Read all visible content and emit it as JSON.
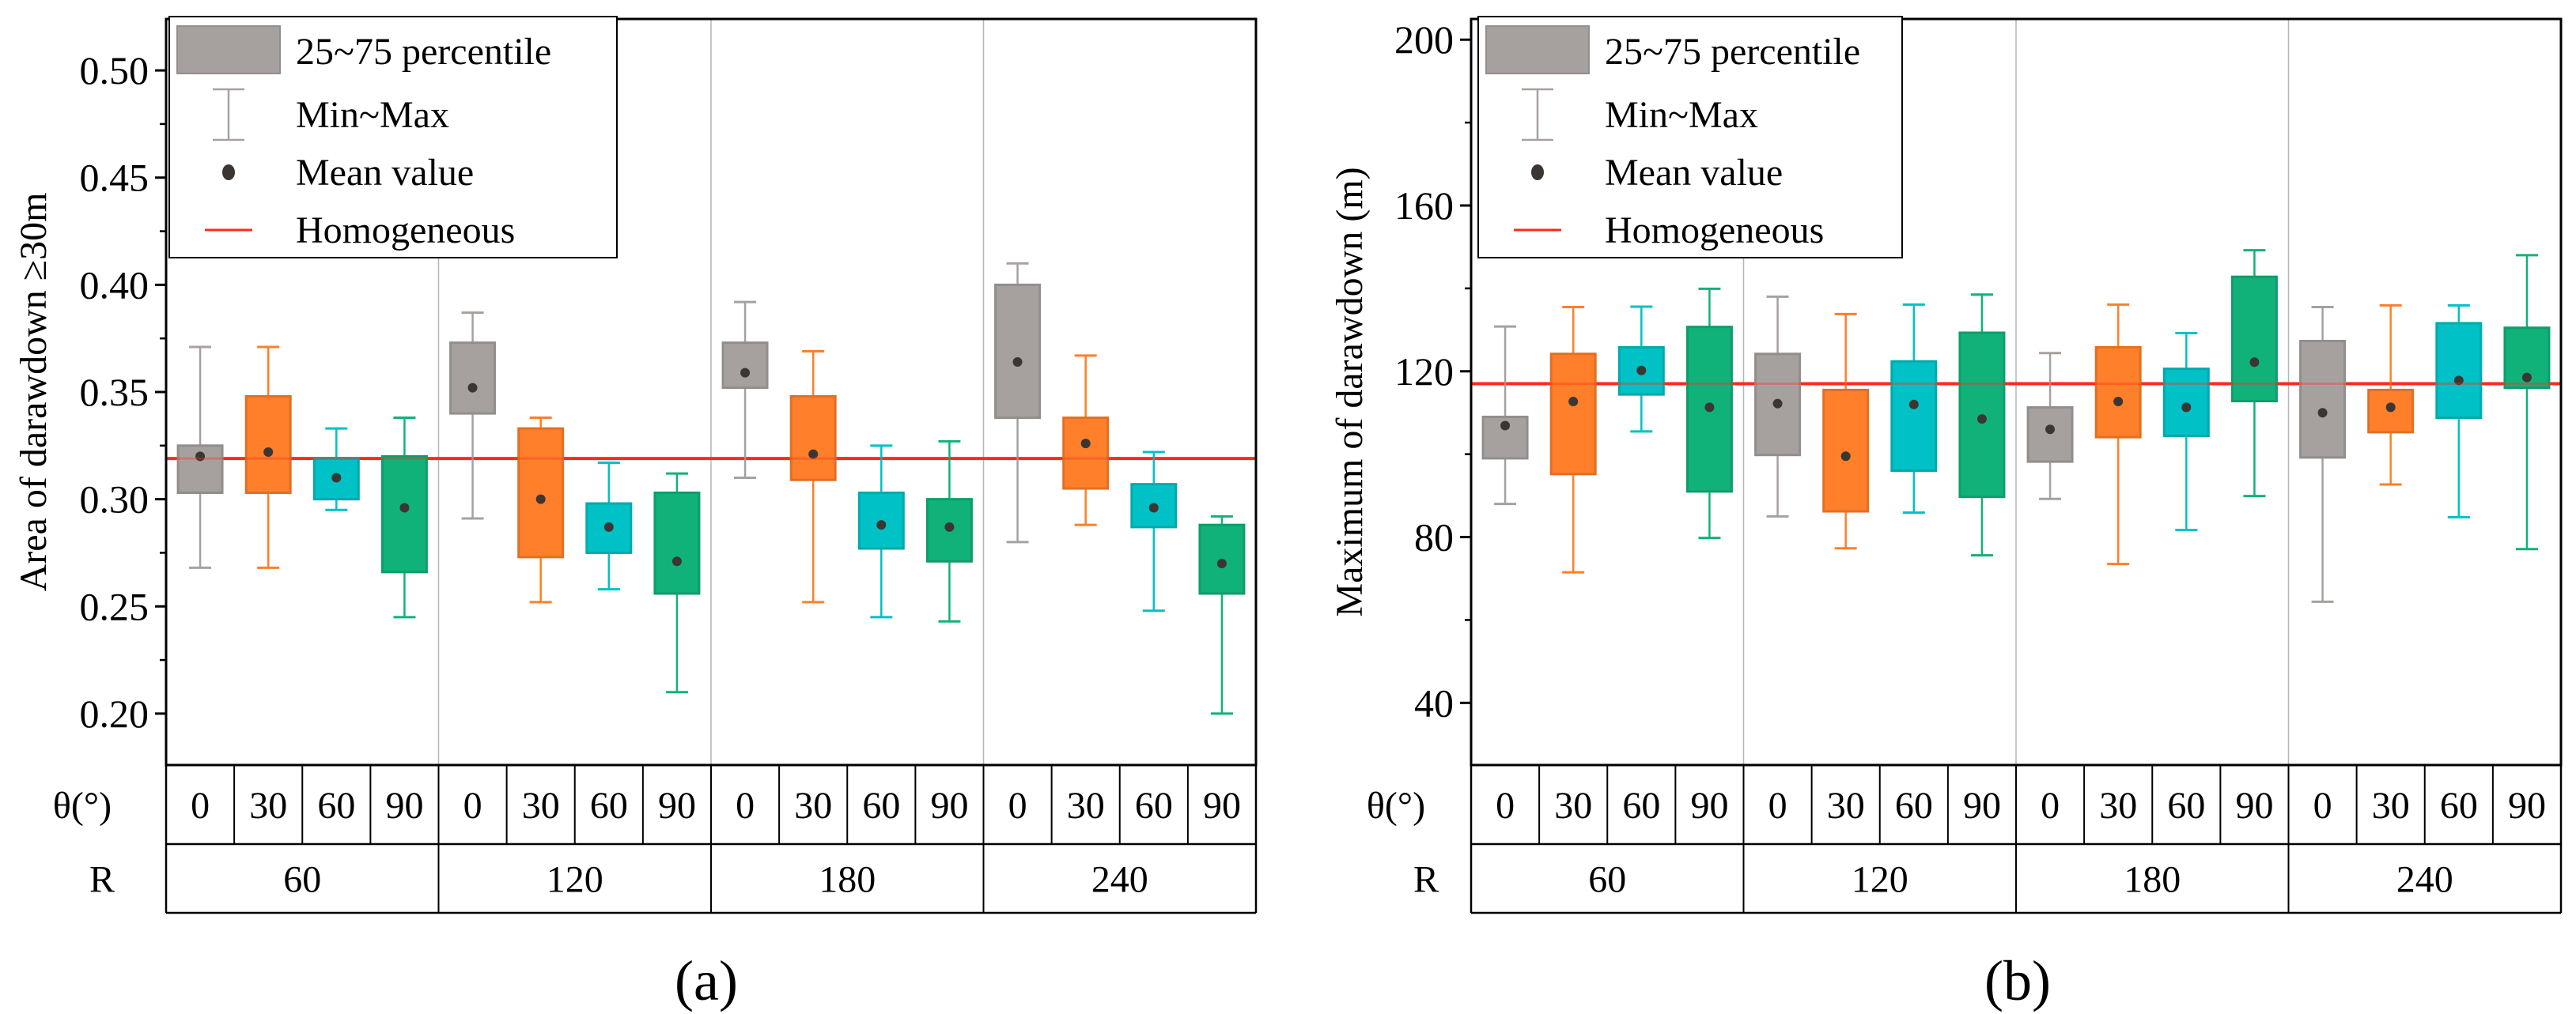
{
  "legend": {
    "box": "25~75 percentile",
    "whisker": "Min~Max",
    "mean": "Mean value",
    "homogeneous": "Homogeneous"
  },
  "colors": {
    "theta_0": "#a6a19f",
    "theta_30": "#ff7f2a",
    "theta_60": "#00c1c5",
    "theta_90": "#10b27a",
    "homogeneous": "#ff2a1a",
    "mean": "#3b3632"
  },
  "chart_data": [
    {
      "type": "box",
      "panel_label": "(a)",
      "ylabel": "Area of darawdown ≥30m",
      "ylim": [
        0.176,
        0.524
      ],
      "yticks": [
        0.2,
        0.25,
        0.3,
        0.35,
        0.4,
        0.45,
        0.5
      ],
      "ytick_labels": [
        "0.20",
        "0.25",
        "0.30",
        "0.35",
        "0.40",
        "0.45",
        "0.50"
      ],
      "yminor_step": 0.025,
      "theta_row_label": "θ(°)",
      "r_row_label": "R",
      "theta_labels": [
        "0",
        "30",
        "60",
        "90"
      ],
      "r_labels": [
        "60",
        "120",
        "180",
        "240"
      ],
      "homogeneous": 0.319,
      "legend_position": "top-left",
      "stats_order": [
        "min",
        "q1",
        "mean",
        "q3",
        "max"
      ],
      "groups": [
        [
          [
            0.268,
            0.303,
            0.32,
            0.325,
            0.371
          ],
          [
            0.268,
            0.303,
            0.322,
            0.348,
            0.371
          ],
          [
            0.295,
            0.3,
            0.31,
            0.319,
            0.333
          ],
          [
            0.245,
            0.266,
            0.296,
            0.32,
            0.338
          ]
        ],
        [
          [
            0.291,
            0.34,
            0.352,
            0.373,
            0.387
          ],
          [
            0.252,
            0.273,
            0.3,
            0.333,
            0.338
          ],
          [
            0.258,
            0.275,
            0.287,
            0.298,
            0.317
          ],
          [
            0.21,
            0.256,
            0.271,
            0.303,
            0.312
          ]
        ],
        [
          [
            0.31,
            0.352,
            0.359,
            0.373,
            0.392
          ],
          [
            0.252,
            0.309,
            0.321,
            0.348,
            0.369
          ],
          [
            0.245,
            0.277,
            0.288,
            0.303,
            0.325
          ],
          [
            0.243,
            0.271,
            0.287,
            0.3,
            0.327
          ]
        ],
        [
          [
            0.28,
            0.338,
            0.364,
            0.4,
            0.41
          ],
          [
            0.288,
            0.305,
            0.326,
            0.338,
            0.367
          ],
          [
            0.248,
            0.287,
            0.296,
            0.307,
            0.322
          ],
          [
            0.2,
            0.256,
            0.27,
            0.288,
            0.292
          ]
        ]
      ]
    },
    {
      "type": "box",
      "panel_label": "(b)",
      "ylabel": "Maximum of darawdown (m)",
      "ylim": [
        25,
        205
      ],
      "yticks": [
        40,
        80,
        120,
        160,
        200
      ],
      "ytick_labels": [
        "40",
        "80",
        "120",
        "160",
        "200"
      ],
      "yminor_step": 20,
      "theta_row_label": "θ(°)",
      "r_row_label": "R",
      "theta_labels": [
        "0",
        "30",
        "60",
        "90"
      ],
      "r_labels": [
        "60",
        "120",
        "180",
        "240"
      ],
      "homogeneous": 117,
      "legend_position": "top-left",
      "stats_order": [
        "min",
        "q1",
        "mean",
        "q3",
        "max"
      ],
      "groups": [
        [
          [
            88.0,
            99.0,
            106.9,
            109.0,
            130.8
          ],
          [
            71.5,
            95.2,
            112.7,
            124.2,
            135.5
          ],
          [
            105.5,
            114.4,
            120.2,
            125.8,
            135.6
          ],
          [
            79.8,
            91.0,
            111.3,
            130.7,
            139.9
          ]
        ],
        [
          [
            85.0,
            99.8,
            112.2,
            124.2,
            138.0
          ],
          [
            77.3,
            86.2,
            99.5,
            115.5,
            133.8
          ],
          [
            85.9,
            96.0,
            112.0,
            122.4,
            136.1
          ],
          [
            75.6,
            89.7,
            108.5,
            129.3,
            138.5
          ]
        ],
        [
          [
            89.2,
            98.2,
            106.0,
            111.3,
            124.4
          ],
          [
            73.5,
            104.1,
            112.7,
            125.8,
            136.1
          ],
          [
            81.7,
            104.4,
            111.3,
            120.6,
            129.2
          ],
          [
            89.9,
            112.8,
            122.2,
            142.8,
            149.2
          ]
        ],
        [
          [
            64.4,
            99.2,
            110.0,
            127.3,
            135.5
          ],
          [
            92.7,
            105.3,
            111.3,
            115.5,
            135.9
          ],
          [
            84.8,
            108.8,
            117.8,
            131.6,
            135.9
          ],
          [
            77.1,
            116.0,
            118.5,
            130.5,
            148.0
          ]
        ]
      ]
    }
  ]
}
